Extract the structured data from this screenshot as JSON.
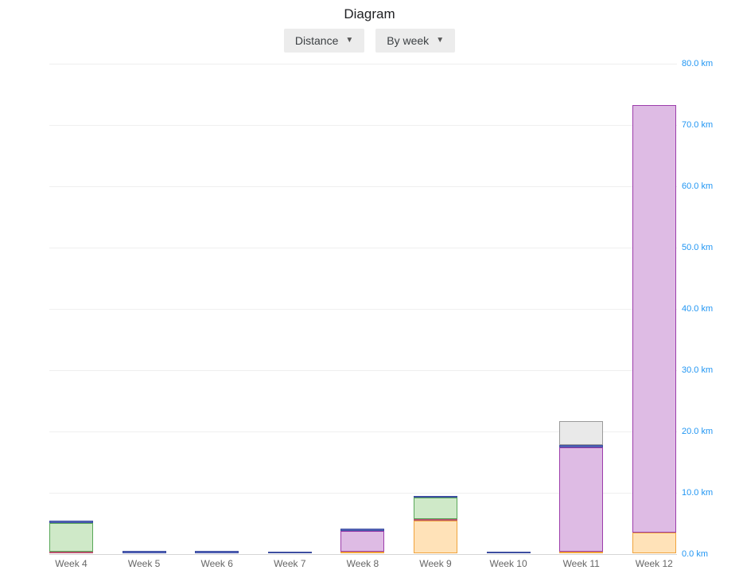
{
  "header": {
    "title": "Diagram"
  },
  "toolbar": {
    "metric_dropdown": {
      "label": "Distance",
      "caret_icon": "▼"
    },
    "grouping_dropdown": {
      "label": "By week",
      "caret_icon": "▼"
    }
  },
  "colors": {
    "axis_label_blue": "#2196f3",
    "week_label_gray": "#666666",
    "gridline": "#efefef",
    "baseline": "#d6d6d6",
    "button_bg": "#ececec"
  },
  "chart_data": {
    "type": "bar",
    "stacked": true,
    "title": "Diagram",
    "xlabel": "",
    "ylabel": "km",
    "ylim": [
      0,
      80
    ],
    "grid": true,
    "y_axis_side": "right",
    "y_tick_step": 10,
    "y_ticks": [
      "80.0 km",
      "70.0 km",
      "60.0 km",
      "50.0 km",
      "40.0 km",
      "30.0 km",
      "20.0 km",
      "10.0 km",
      "0.0 km"
    ],
    "categories": [
      "Week 4",
      "Week 5",
      "Week 6",
      "Week 7",
      "Week 8",
      "Week 9",
      "Week 10",
      "Week 11",
      "Week 12"
    ],
    "series": [
      {
        "name": "orange-segment",
        "fill": "#ffe2b8",
        "border": "#f0a33c",
        "values": [
          0,
          0,
          0,
          0,
          0.25,
          5.3,
          0,
          0.25,
          3.4
        ]
      },
      {
        "name": "red-segment",
        "fill": "#e9b9c3",
        "border": "#b8546e",
        "values": [
          0.3,
          0,
          0,
          0,
          0,
          0.25,
          0,
          0,
          0
        ]
      },
      {
        "name": "green-segment",
        "fill": "#cfe9c8",
        "border": "#58a758",
        "values": [
          4.7,
          0,
          0,
          0,
          0,
          3.5,
          0,
          0,
          0
        ]
      },
      {
        "name": "purple-segment",
        "fill": "#debbe4",
        "border": "#9c3dab",
        "values": [
          0,
          0,
          0,
          0,
          3.4,
          0,
          0,
          17.0,
          69.7
        ]
      },
      {
        "name": "blue-segment",
        "fill": "#5c6bc0",
        "border": "#3d4ea0",
        "values": [
          0.4,
          0.4,
          0.4,
          0.3,
          0.4,
          0.3,
          0.3,
          0.4,
          0
        ]
      },
      {
        "name": "gray-segment",
        "fill": "#e9e9e9",
        "border": "#9a9a9a",
        "values": [
          0,
          0,
          0,
          0,
          0,
          0,
          0,
          3.9,
          0
        ]
      }
    ],
    "totals_km": [
      5.4,
      0.4,
      0.4,
      0.3,
      4.05,
      9.35,
      0.3,
      21.55,
      73.1
    ]
  }
}
